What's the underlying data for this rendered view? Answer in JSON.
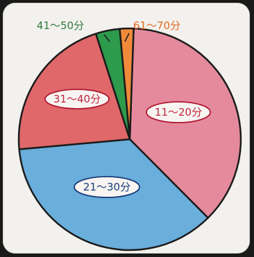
{
  "chart_data": {
    "type": "pie",
    "start_angle_deg": 2,
    "slices": [
      {
        "label": "11～20分",
        "value": 37.0,
        "color": "#e58a9c",
        "label_color": "#b01830",
        "text_color": "#c0283c"
      },
      {
        "label": "21～30分",
        "value": 36.0,
        "color": "#6aaedb",
        "label_color": "#1a3c7a",
        "text_color": "#1a3c7a"
      },
      {
        "label": "31～40分",
        "value": 21.5,
        "color": "#e0686a",
        "label_color": "#b01830",
        "text_color": "#c0283c"
      },
      {
        "label": "41～50分",
        "value": 3.5,
        "color": "#2e9a4c",
        "label_color": "#2f7a3c",
        "text_color": "#2f7a3c"
      },
      {
        "label": "61～70分",
        "value": 2.0,
        "color": "#f08a3a",
        "label_color": "#e06a20",
        "text_color": "#e06a20"
      }
    ]
  }
}
